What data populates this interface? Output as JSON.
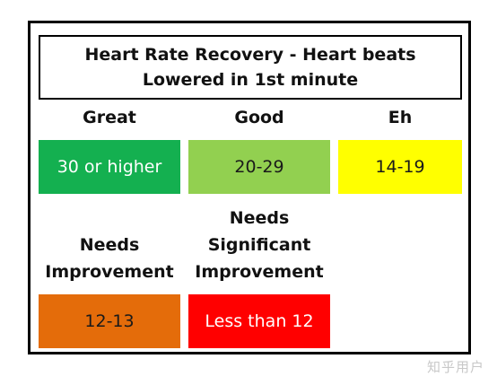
{
  "title": "Heart Rate Recovery - Heart beats Lowered in 1st minute",
  "categories": [
    {
      "label": "Great",
      "range": "30 or higher",
      "color": "#14b050"
    },
    {
      "label": "Good",
      "range": "20-29",
      "color": "#92d050"
    },
    {
      "label": "Eh",
      "range": "14-19",
      "color": "#ffff00"
    },
    {
      "label": "Needs Improvement",
      "range": "12-13",
      "color": "#e46c0a"
    },
    {
      "label": "Needs Significant Improvement",
      "range": "Less than 12",
      "color": "#ff0000"
    }
  ],
  "watermark": "知乎用户"
}
